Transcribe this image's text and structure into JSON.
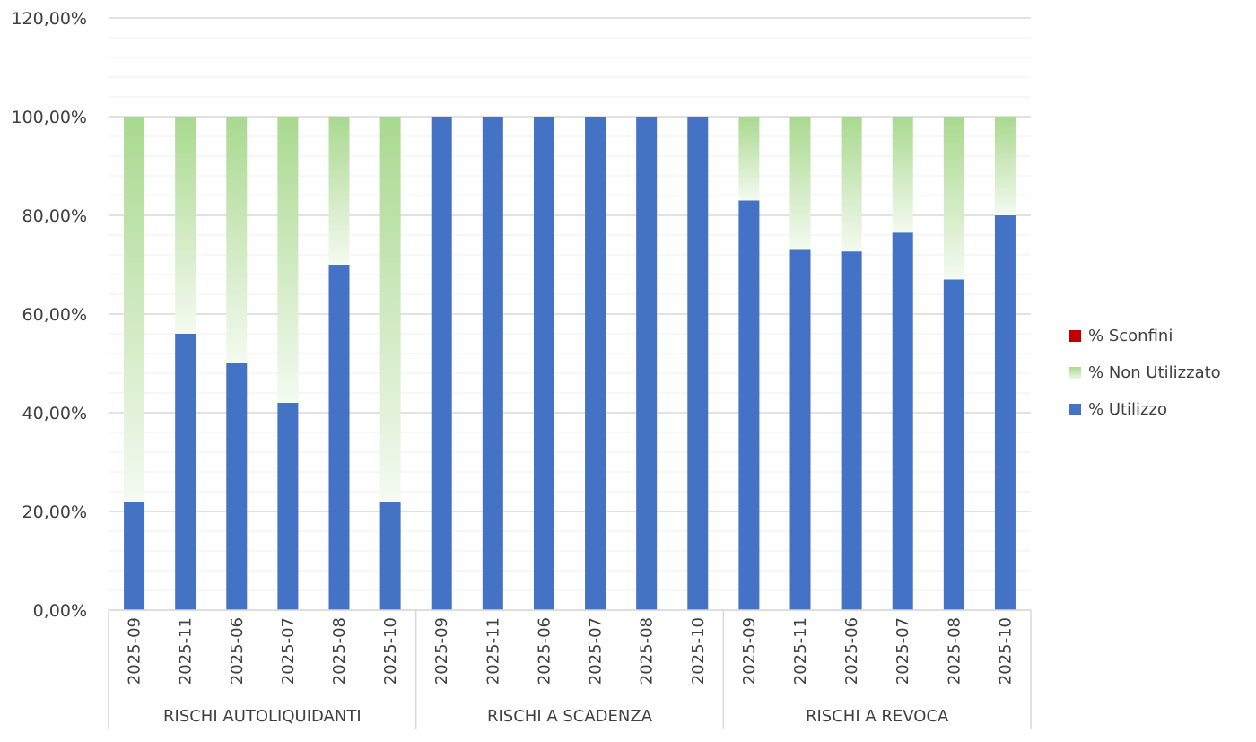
{
  "chart_data": {
    "type": "bar",
    "stacked": true,
    "groups": [
      {
        "label": "RISCHI AUTOLIQUIDANTI",
        "categories": [
          "2025-09",
          "2025-11",
          "2025-06",
          "2025-07",
          "2025-08",
          "2025-10"
        ]
      },
      {
        "label": "RISCHI A SCADENZA",
        "categories": [
          "2025-09",
          "2025-11",
          "2025-06",
          "2025-07",
          "2025-08",
          "2025-10"
        ]
      },
      {
        "label": "RISCHI A REVOCA",
        "categories": [
          "2025-09",
          "2025-11",
          "2025-06",
          "2025-07",
          "2025-08",
          "2025-10"
        ]
      }
    ],
    "categories": [
      "2025-09",
      "2025-11",
      "2025-06",
      "2025-07",
      "2025-08",
      "2025-10",
      "2025-09",
      "2025-11",
      "2025-06",
      "2025-07",
      "2025-08",
      "2025-10",
      "2025-09",
      "2025-11",
      "2025-06",
      "2025-07",
      "2025-08",
      "2025-10"
    ],
    "series": [
      {
        "name": "% Utilizzo",
        "color": "#4472c4",
        "values": [
          22,
          56,
          50,
          42,
          70,
          22,
          100,
          100,
          100,
          100,
          100,
          100,
          83,
          73,
          72.7,
          76.5,
          67,
          80
        ]
      },
      {
        "name": "% Non Utilizzato",
        "color": "#a9d98f",
        "values": [
          78,
          44,
          50,
          58,
          30,
          78,
          0,
          0,
          0,
          0,
          0,
          0,
          17,
          27,
          27.3,
          23.5,
          33,
          20
        ]
      },
      {
        "name": "% Sconfini",
        "color": "#c00000",
        "values": [
          0,
          0,
          0,
          0,
          0,
          0,
          0,
          0,
          0,
          0,
          0,
          0,
          0,
          0,
          0,
          0,
          0,
          0
        ]
      }
    ],
    "yticks": [
      "0,00%",
      "20,00%",
      "40,00%",
      "60,00%",
      "80,00%",
      "100,00%",
      "120,00%"
    ],
    "ylim": [
      0,
      120
    ],
    "legend_position": "right",
    "grid": true
  },
  "legend": {
    "items": [
      {
        "label": "% Sconfini"
      },
      {
        "label": "% Non Utilizzato"
      },
      {
        "label": "% Utilizzo"
      }
    ]
  }
}
